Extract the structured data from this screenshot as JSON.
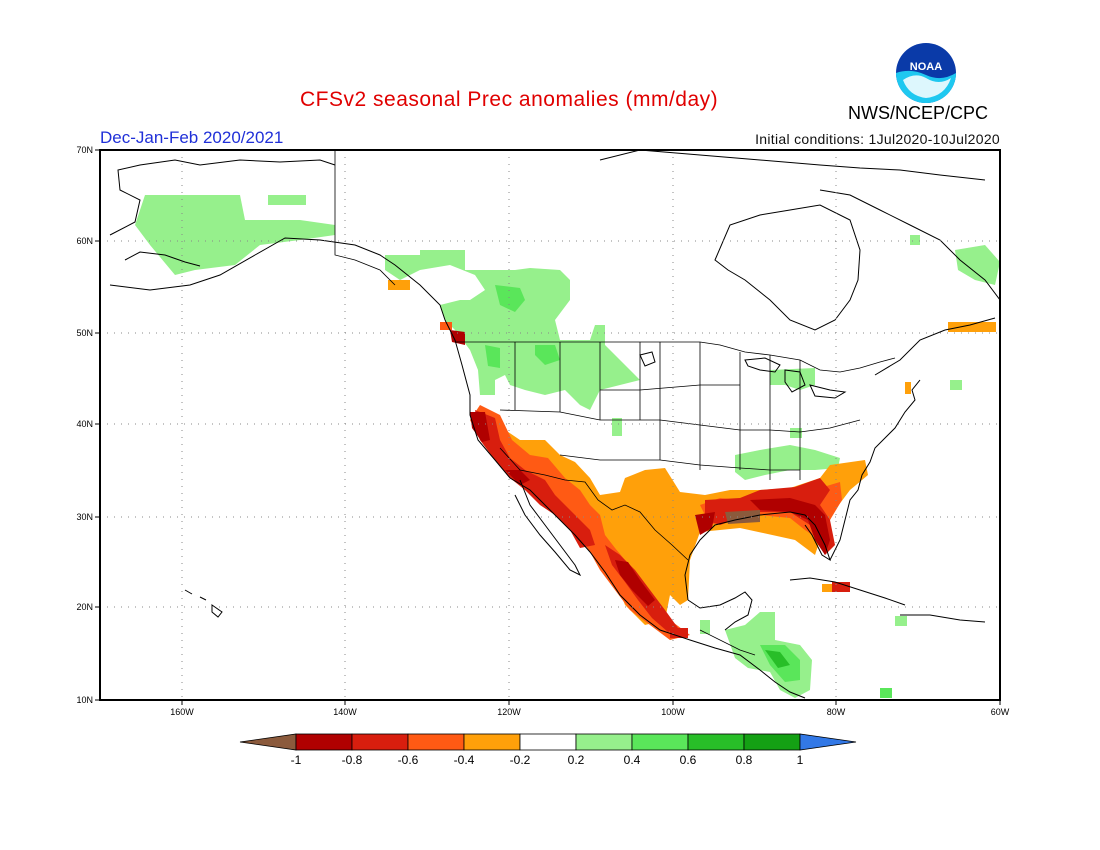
{
  "header": {
    "title": "CFSv2 seasonal Prec anomalies (mm/day)",
    "period": "Dec-Jan-Feb 2020/2021",
    "initial_conditions": "Initial conditions: 1Jul2020-10Jul2020",
    "agency": "NWS/NCEP/CPC",
    "logo_text": "NOAA"
  },
  "map": {
    "lon_range": [
      -172,
      -60
    ],
    "lat_range": [
      10,
      70
    ],
    "lat_ticks": [
      "10N",
      "20N",
      "30N",
      "40N",
      "50N",
      "60N",
      "70N"
    ],
    "lon_ticks": [
      "160W",
      "140W",
      "120W",
      "100W",
      "80W",
      "60W"
    ],
    "grid": "dotted"
  },
  "colorbar": {
    "labels": [
      "-1",
      "-0.8",
      "-0.6",
      "-0.4",
      "-0.2",
      "0.2",
      "0.4",
      "0.6",
      "0.8",
      "1"
    ],
    "colors": [
      "#8b5a3c",
      "#b00000",
      "#d81e0e",
      "#ff5a14",
      "#ffa00a",
      "#ffffff",
      "#96f08c",
      "#5ae65a",
      "#28be28",
      "#14a014",
      "#3278e6"
    ]
  }
}
